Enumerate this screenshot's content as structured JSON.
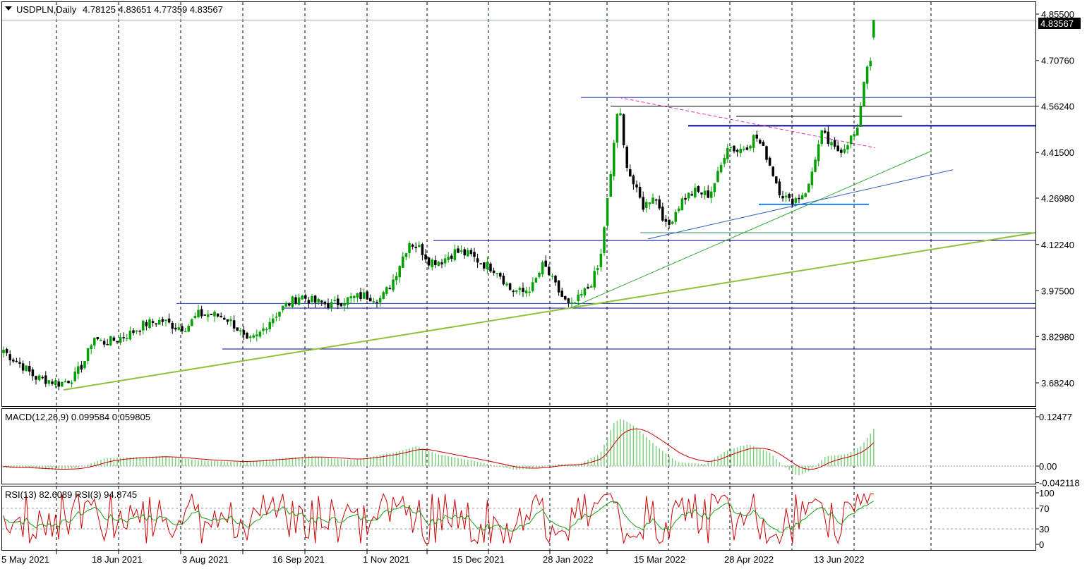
{
  "header": {
    "symbol_label": "USDPLN,Daily",
    "ohlc": "4.78125 4.83651 4.77359 4.83567"
  },
  "price_panel": {
    "current_price_label": "4.83567",
    "y_ticks": [
      {
        "value": 4.855,
        "label": "4.85500"
      },
      {
        "value": 4.7076,
        "label": "4.70760"
      },
      {
        "value": 4.5624,
        "label": "4.56240"
      },
      {
        "value": 4.415,
        "label": "4.41500"
      },
      {
        "value": 4.2698,
        "label": "4.26980"
      },
      {
        "value": 4.1224,
        "label": "4.12240"
      },
      {
        "value": 3.975,
        "label": "3.97500"
      },
      {
        "value": 3.8298,
        "label": "3.82980"
      },
      {
        "value": 3.6824,
        "label": "3.68240"
      }
    ]
  },
  "macd_panel": {
    "label": "MACD(12,26,9) 0.099584 0.059805",
    "y_ticks": [
      {
        "value": 0.12477,
        "label": "0.12477"
      },
      {
        "value": 0.0,
        "label": "0.00"
      },
      {
        "value": -0.042118,
        "label": "-0.042118"
      }
    ]
  },
  "rsi_panel": {
    "label": "RSI(13) 82.6089  RSI(3) 94.8745",
    "y_ticks": [
      {
        "value": 100,
        "label": "100"
      },
      {
        "value": 70,
        "label": "70"
      },
      {
        "value": 30,
        "label": "30"
      },
      {
        "value": 0,
        "label": "0"
      }
    ]
  },
  "x_axis": {
    "labels": [
      "5 May 2021",
      "18 Jun 2021",
      "3 Aug 2021",
      "16 Sep 2021",
      "1 Nov 2021",
      "15 Dec 2021",
      "28 Jan 2022",
      "15 Mar 2022",
      "28 Apr 2022",
      "13 Jun 2022"
    ]
  },
  "colors": {
    "bull": "#00a000",
    "bear": "#000000",
    "macd_hist": "#7ed07e",
    "signal": "#cc0000",
    "rsi13": "#1aa01a",
    "rsi3": "#cc0000",
    "hline_blue": "#1f3fbf",
    "trend_green": "#8fc23a"
  },
  "chart_data": {
    "type": "candlestick",
    "symbol": "USDPLN",
    "timeframe": "Daily",
    "last_bar": {
      "open": 4.78125,
      "high": 4.83651,
      "low": 4.77359,
      "close": 4.83567
    },
    "x": [
      "5 May 2021",
      "18 Jun 2021",
      "3 Aug 2021",
      "16 Sep 2021",
      "1 Nov 2021",
      "15 Dec 2021",
      "28 Jan 2022",
      "15 Mar 2022",
      "28 Apr 2022",
      "13 Jun 2022"
    ],
    "close_path": [
      [
        "5 May 2021",
        3.78
      ],
      [
        "18 Jun 2021",
        3.72
      ],
      [
        "3 Aug 2021",
        3.86
      ],
      [
        "16 Sep 2021",
        3.93
      ],
      [
        "1 Nov 2021",
        3.95
      ],
      [
        "15 Dec 2021",
        4.09
      ],
      [
        "28 Jan 2022",
        4.02
      ],
      [
        "15 Mar 2022",
        4.22
      ],
      [
        "28 Apr 2022",
        4.44
      ],
      [
        "13 Jun 2022",
        4.43
      ]
    ],
    "ylim": [
      3.62,
      4.86
    ],
    "indicators": [
      {
        "name": "MACD(12,26,9)",
        "values": [
          0.099584,
          0.059805
        ],
        "ylim": [
          -0.042118,
          0.12477
        ]
      },
      {
        "name": "RSI(13)",
        "value": 82.6089,
        "ylim": [
          0,
          100
        ]
      },
      {
        "name": "RSI(3)",
        "value": 94.8745,
        "ylim": [
          0,
          100
        ]
      }
    ],
    "horizontal_levels": [
      4.59,
      4.5624,
      4.5,
      4.47,
      4.25,
      4.16,
      4.135,
      3.935,
      3.92,
      3.79
    ],
    "grid": "vertical dashed"
  }
}
